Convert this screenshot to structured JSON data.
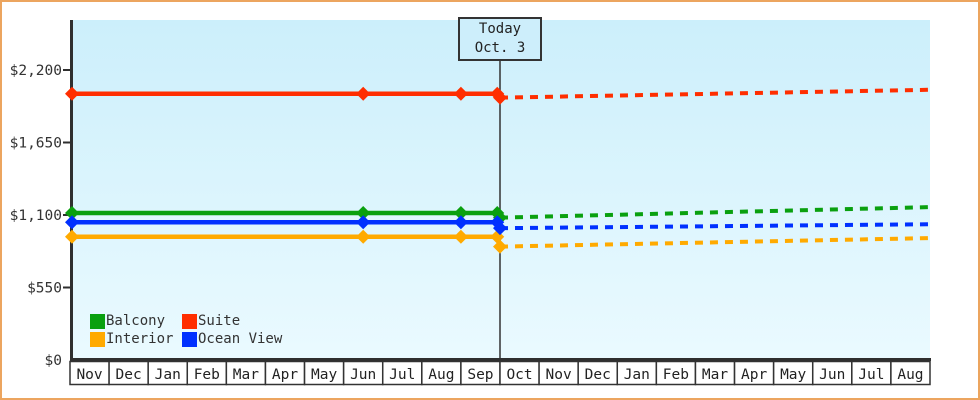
{
  "window": {
    "background_color": "#ffffff",
    "frame_border_color": "#eca55f"
  },
  "chart_data": {
    "type": "line",
    "title": "",
    "xlabel": "",
    "ylabel": "",
    "plot_background": {
      "top_color": "#cceffb",
      "bottom_color": "#eafaff"
    },
    "axis_color": "#2f2f2f",
    "x_axis": {
      "month_labels": [
        "Nov",
        "Dec",
        "Jan",
        "Feb",
        "Mar",
        "Apr",
        "May",
        "Jun",
        "Jul",
        "Aug",
        "Sep",
        "Oct",
        "Nov",
        "Dec",
        "Jan",
        "Feb",
        "Mar",
        "Apr",
        "May",
        "Jun",
        "Jul",
        "Aug"
      ],
      "months_total": 22
    },
    "y_axis": {
      "tick_labels": [
        "$0",
        "$550",
        "$1,100",
        "$1,650",
        "$2,200"
      ],
      "tick_values": [
        0,
        550,
        1100,
        1650,
        2200
      ],
      "ylim": [
        0,
        2580
      ],
      "grid": false
    },
    "annotations": {
      "today_label": "Today",
      "today_date": "Oct. 3",
      "today_month_offset": 11
    },
    "series": [
      {
        "name": "Balcony",
        "color": "#0aa00f",
        "solid_points": {
          "month_offsets": [
            0.05,
            7.5,
            10.0,
            10.93
          ],
          "values": [
            1115,
            1115,
            1115,
            1115
          ]
        },
        "today_value": 1080,
        "forecast": {
          "month_offsets": [
            11,
            22
          ],
          "values": [
            1080,
            1160
          ]
        }
      },
      {
        "name": "Suite",
        "color": "#ff2e00",
        "solid_points": {
          "month_offsets": [
            0.05,
            7.5,
            10.0,
            10.93
          ],
          "values": [
            2020,
            2020,
            2020,
            2020
          ]
        },
        "today_value": 1990,
        "forecast": {
          "month_offsets": [
            11,
            22
          ],
          "values": [
            1990,
            2050
          ]
        }
      },
      {
        "name": "Interior",
        "color": "#ffaa00",
        "solid_points": {
          "month_offsets": [
            0.05,
            7.5,
            10.0,
            10.93
          ],
          "values": [
            935,
            935,
            935,
            935
          ]
        },
        "today_value": 860,
        "forecast": {
          "month_offsets": [
            11,
            22
          ],
          "values": [
            860,
            925
          ]
        }
      },
      {
        "name": "Ocean View",
        "color": "#0030ff",
        "solid_points": {
          "month_offsets": [
            0.05,
            7.5,
            10.0,
            10.93
          ],
          "values": [
            1045,
            1045,
            1045,
            1045
          ]
        },
        "today_value": 1000,
        "forecast": {
          "month_offsets": [
            11,
            22
          ],
          "values": [
            1000,
            1030
          ]
        }
      }
    ],
    "legend": {
      "position": "bottom-left",
      "rows": [
        [
          "Balcony",
          "Suite"
        ],
        [
          "Interior",
          "Ocean View"
        ]
      ]
    }
  }
}
